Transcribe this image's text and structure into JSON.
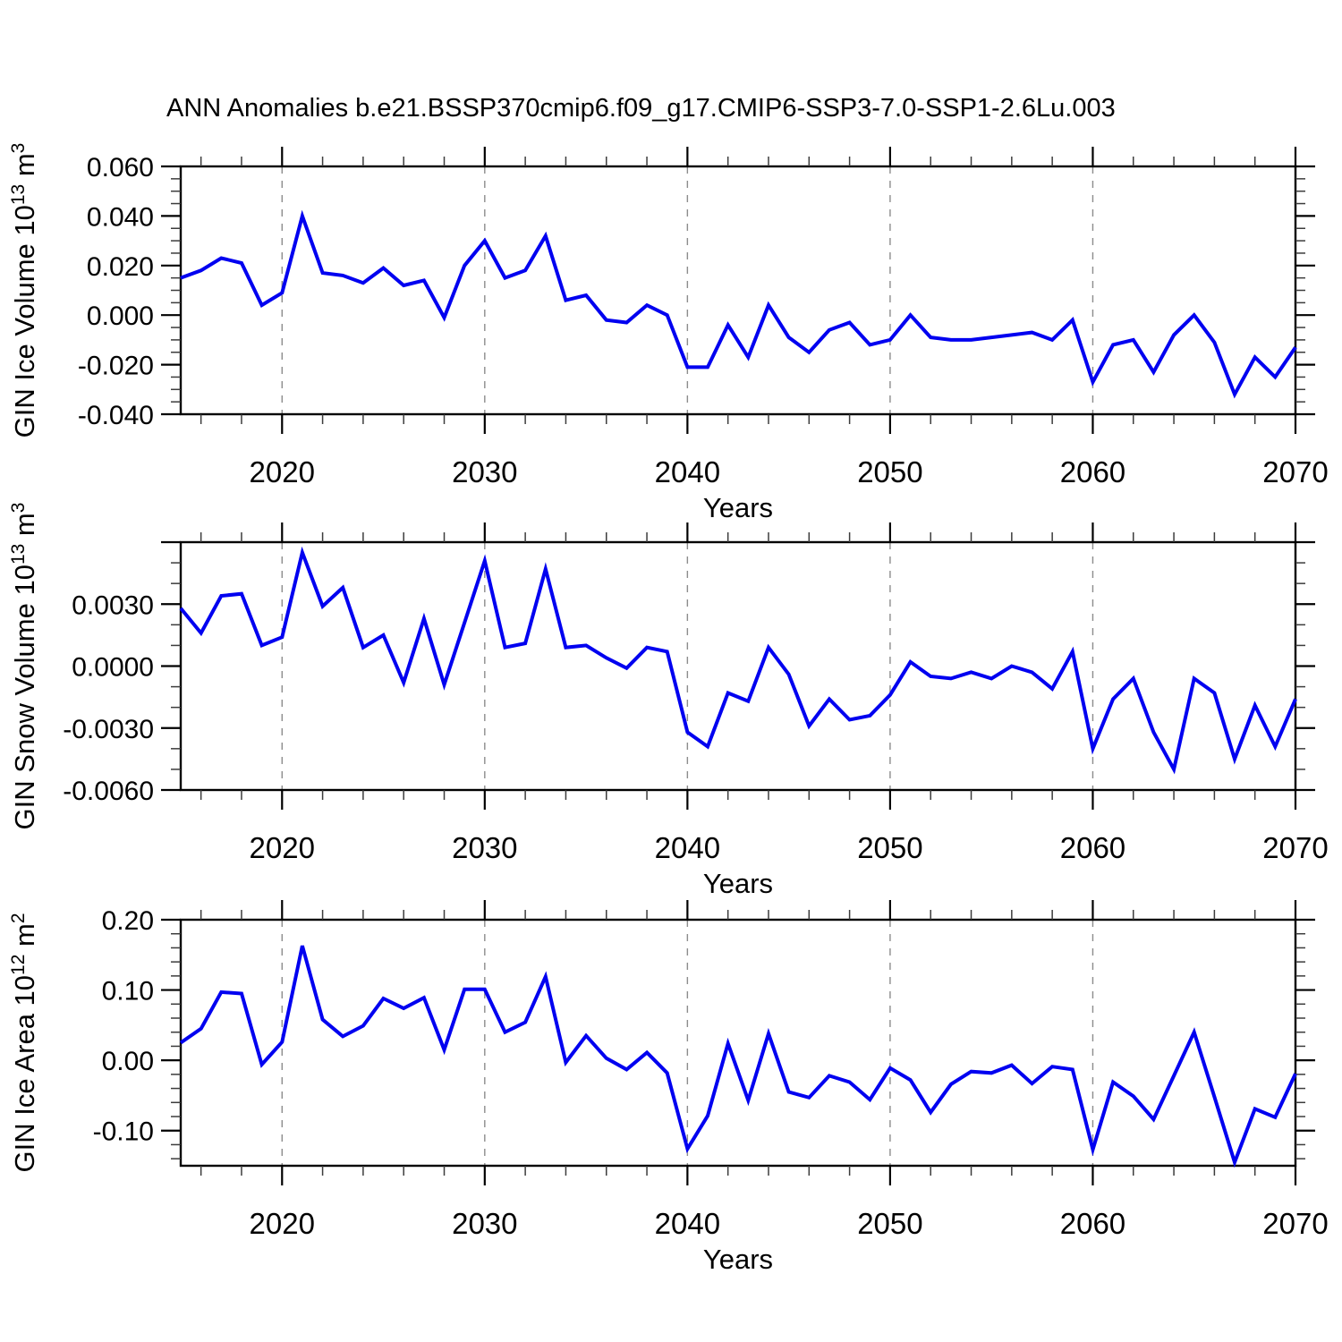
{
  "title": "ANN Anomalies b.e21.BSSP370cmip6.f09_g17.CMIP6-SSP3-7.0-SSP1-2.6Lu.003",
  "colors": {
    "line": "#0000f0",
    "grid": "#8c8c8c",
    "axis": "#000000",
    "background": "#ffffff"
  },
  "x_axis": {
    "label": "Years",
    "min": 2015,
    "max": 2070,
    "major_ticks": [
      2020,
      2030,
      2040,
      2050,
      2060,
      2070
    ],
    "minor_step": 2,
    "grid_years": [
      2020,
      2030,
      2040,
      2050,
      2060
    ]
  },
  "years": [
    2015,
    2016,
    2017,
    2018,
    2019,
    2020,
    2021,
    2022,
    2023,
    2024,
    2025,
    2026,
    2027,
    2028,
    2029,
    2030,
    2031,
    2032,
    2033,
    2034,
    2035,
    2036,
    2037,
    2038,
    2039,
    2040,
    2041,
    2042,
    2043,
    2044,
    2045,
    2046,
    2047,
    2048,
    2049,
    2050,
    2051,
    2052,
    2053,
    2054,
    2055,
    2056,
    2057,
    2058,
    2059,
    2060,
    2061,
    2062,
    2063,
    2064,
    2065,
    2066,
    2067,
    2068,
    2069,
    2070
  ],
  "chart_data": [
    {
      "type": "line",
      "name": "gin-ice-volume",
      "title": "",
      "xlabel": "Years",
      "ylabel": "GIN Ice Volume 10^13 m^3",
      "ylabel_parts": [
        {
          "t": "GIN Ice Volume 10"
        },
        {
          "t": "13",
          "sup": true
        },
        {
          "t": " m"
        },
        {
          "t": "3",
          "sup": true
        }
      ],
      "ylim": [
        -0.04,
        0.06
      ],
      "y_major_step": 0.02,
      "y_minor_step": 0.005,
      "yticks": [
        {
          "v": 0.06,
          "label": "0.060"
        },
        {
          "v": 0.04,
          "label": "0.040"
        },
        {
          "v": 0.02,
          "label": "0.020"
        },
        {
          "v": 0.0,
          "label": "0.000"
        },
        {
          "v": -0.02,
          "label": "-0.020"
        },
        {
          "v": -0.04,
          "label": "-0.040"
        }
      ],
      "values": [
        0.015,
        0.018,
        0.023,
        0.021,
        0.004,
        0.009,
        0.04,
        0.017,
        0.016,
        0.013,
        0.019,
        0.012,
        0.014,
        -0.001,
        0.02,
        0.03,
        0.015,
        0.018,
        0.032,
        0.006,
        0.008,
        -0.002,
        -0.003,
        0.004,
        0.0,
        -0.021,
        -0.021,
        -0.004,
        -0.017,
        0.004,
        -0.009,
        -0.015,
        -0.006,
        -0.003,
        -0.012,
        -0.01,
        0.0,
        -0.009,
        -0.01,
        -0.01,
        -0.009,
        -0.008,
        -0.007,
        -0.01,
        -0.002,
        -0.027,
        -0.012,
        -0.01,
        -0.023,
        -0.008,
        0.0,
        -0.011,
        -0.032,
        -0.017,
        -0.025,
        -0.013
      ]
    },
    {
      "type": "line",
      "name": "gin-snow-volume",
      "title": "",
      "xlabel": "Years",
      "ylabel": "GIN Snow Volume 10^13 m^3",
      "ylabel_parts": [
        {
          "t": "GIN Snow Volume 10"
        },
        {
          "t": "13",
          "sup": true
        },
        {
          "t": " m"
        },
        {
          "t": "3",
          "sup": true
        }
      ],
      "ylim": [
        -0.006,
        0.006
      ],
      "y_major_step": 0.003,
      "y_minor_step": 0.001,
      "yticks": [
        {
          "v": 0.006,
          "label": ""
        },
        {
          "v": 0.003,
          "label": "0.0030"
        },
        {
          "v": 0.0,
          "label": "0.0000"
        },
        {
          "v": -0.003,
          "label": "-0.0030"
        },
        {
          "v": -0.006,
          "label": "-0.0060"
        }
      ],
      "values": [
        0.0028,
        0.0016,
        0.0034,
        0.0035,
        0.001,
        0.0014,
        0.0055,
        0.0029,
        0.0038,
        0.0009,
        0.0015,
        -0.0008,
        0.0023,
        -0.0009,
        0.0021,
        0.0051,
        0.0009,
        0.0011,
        0.0047,
        0.0009,
        0.001,
        0.0004,
        -0.0001,
        0.0009,
        0.0007,
        -0.0032,
        -0.0039,
        -0.0013,
        -0.0017,
        0.0009,
        -0.0004,
        -0.0029,
        -0.0016,
        -0.0026,
        -0.0024,
        -0.0014,
        0.0002,
        -0.0005,
        -0.0006,
        -0.0003,
        -0.0006,
        0.0,
        -0.0003,
        -0.0011,
        0.0007,
        -0.004,
        -0.0016,
        -0.0006,
        -0.0032,
        -0.005,
        -0.0006,
        -0.0013,
        -0.0045,
        -0.0019,
        -0.0039,
        -0.0016
      ]
    },
    {
      "type": "line",
      "name": "gin-ice-area",
      "title": "",
      "xlabel": "Years",
      "ylabel": "GIN Ice Area 10^12 m^2",
      "ylabel_parts": [
        {
          "t": "GIN Ice Area 10"
        },
        {
          "t": "12",
          "sup": true
        },
        {
          "t": " m"
        },
        {
          "t": "2",
          "sup": true
        }
      ],
      "ylim": [
        -0.15,
        0.2
      ],
      "y_major_step": 0.1,
      "y_minor_step": 0.02,
      "yticks": [
        {
          "v": 0.2,
          "label": "0.20"
        },
        {
          "v": 0.1,
          "label": "0.10"
        },
        {
          "v": 0.0,
          "label": "0.00"
        },
        {
          "v": -0.1,
          "label": "-0.10"
        }
      ],
      "values": [
        0.025,
        0.045,
        0.097,
        0.095,
        -0.006,
        0.026,
        0.163,
        0.058,
        0.034,
        0.049,
        0.088,
        0.074,
        0.089,
        0.015,
        0.101,
        0.101,
        0.04,
        0.054,
        0.119,
        -0.003,
        0.035,
        0.003,
        -0.013,
        0.011,
        -0.018,
        -0.126,
        -0.079,
        0.024,
        -0.057,
        0.038,
        -0.045,
        -0.053,
        -0.022,
        -0.031,
        -0.056,
        -0.011,
        -0.028,
        -0.074,
        -0.034,
        -0.016,
        -0.018,
        -0.007,
        -0.033,
        -0.009,
        -0.013,
        -0.127,
        -0.031,
        -0.051,
        -0.084,
        -0.022,
        0.04,
        -0.052,
        -0.145,
        -0.069,
        -0.081,
        -0.019
      ]
    }
  ]
}
